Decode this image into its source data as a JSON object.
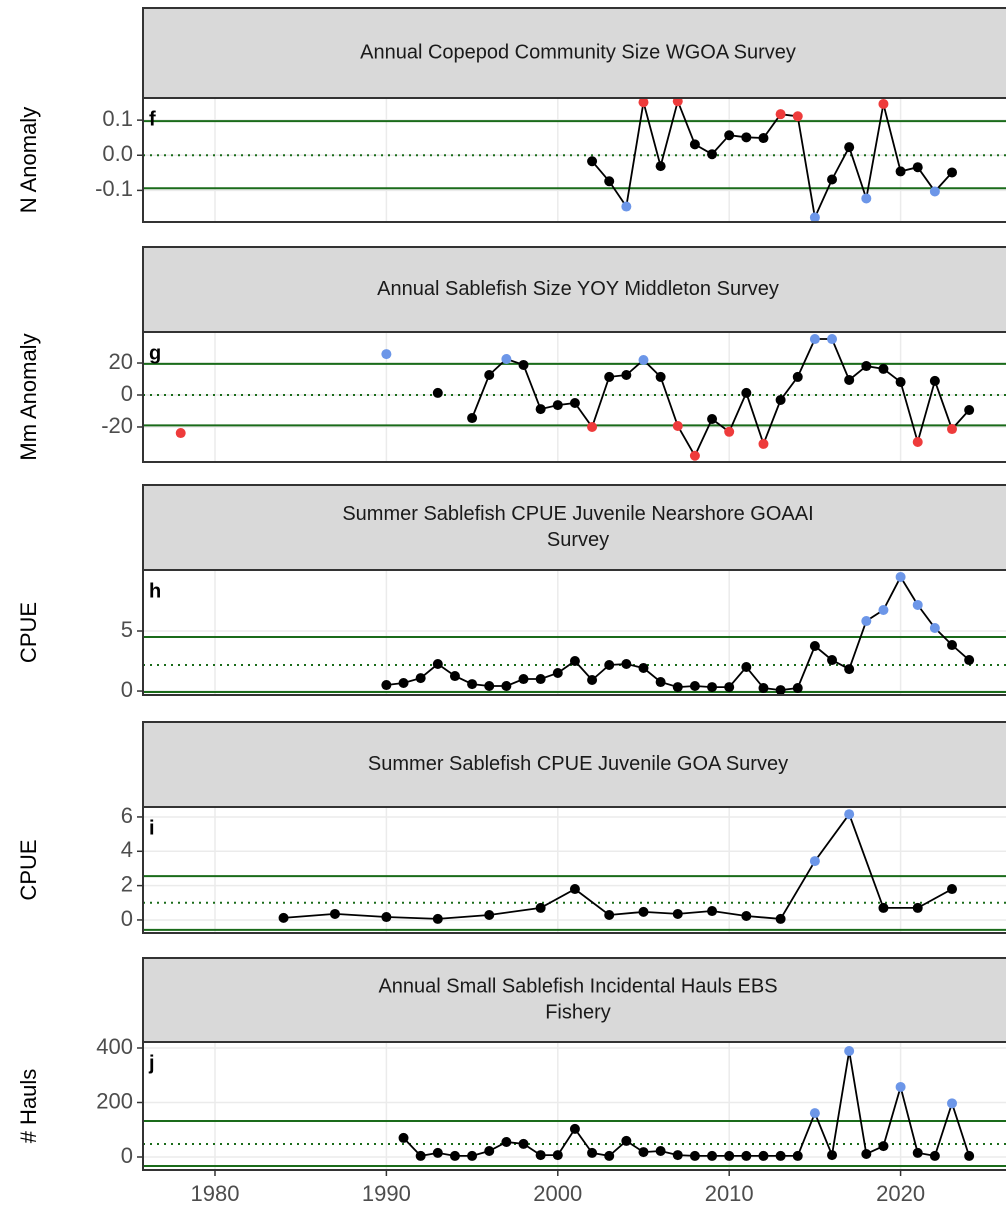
{
  "chart_data": [
    {
      "type": "line",
      "title": [
        "Annual Copepod Community Size WGOA Survey"
      ],
      "panel_label": "f",
      "ylabel": "N Anomaly",
      "xlim": [
        1975.8,
        2026.5
      ],
      "ylim": [
        -0.19,
        0.163
      ],
      "yticks": [
        -0.1,
        {
          "value": 0,
          "label": "0.0"
        },
        0.1
      ],
      "ref_lines": {
        "upper": 0.097,
        "mean": 0,
        "lower": -0.094
      },
      "line_color": "#000000",
      "ref_color": "#1a6b1a",
      "x": [
        2002,
        2003,
        2004,
        2005,
        2006,
        2007,
        2008,
        2009,
        2010,
        2011,
        2012,
        2013,
        2014,
        2015,
        2016,
        2017,
        2018,
        2019,
        2020,
        2021,
        2022,
        2023
      ],
      "values": [
        -0.017,
        -0.074,
        -0.146,
        0.151,
        -0.031,
        0.154,
        0.031,
        0.003,
        0.057,
        0.051,
        0.049,
        0.117,
        0.111,
        -0.177,
        -0.069,
        0.023,
        -0.123,
        0.146,
        -0.046,
        -0.034,
        -0.103,
        -0.049
      ],
      "point_colors": [
        "#000000",
        "#000000",
        "#6c96e8",
        "#ee3b3b",
        "#000000",
        "#ee3b3b",
        "#000000",
        "#000000",
        "#000000",
        "#000000",
        "#000000",
        "#ee3b3b",
        "#ee3b3b",
        "#6c96e8",
        "#000000",
        "#000000",
        "#6c96e8",
        "#ee3b3b",
        "#000000",
        "#000000",
        "#6c96e8",
        "#000000"
      ]
    },
    {
      "type": "line",
      "title": [
        "Annual Sablefish Size YOY Middleton Survey"
      ],
      "panel_label": "g",
      "ylabel": "Mm Anomaly",
      "xlim": [
        1975.8,
        2026.5
      ],
      "ylim": [
        -41.9,
        39.4
      ],
      "yticks": [
        -20,
        0,
        20
      ],
      "ref_lines": {
        "upper": 19.5,
        "mean": 0,
        "lower": -19
      },
      "line_color": "#000000",
      "ref_color": "#1a6b1a",
      "x": [
        1978,
        1979,
        1990,
        1991,
        1993,
        1994,
        1995,
        1996,
        1997,
        1998,
        1999,
        2000,
        2001,
        2002,
        2003,
        2004,
        2005,
        2006,
        2007,
        2008,
        2009,
        2010,
        2011,
        2012,
        2013,
        2014,
        2015,
        2016,
        2017,
        2018,
        2019,
        2020,
        2021,
        2022,
        2023,
        2024
      ],
      "values": [
        -23.8,
        null,
        25.6,
        null,
        1.3,
        null,
        -14.4,
        12.5,
        22.5,
        18.8,
        -8.8,
        -6.3,
        -5,
        -20,
        11.3,
        12.5,
        21.9,
        11.3,
        -19.4,
        -38,
        -15,
        -23,
        1.3,
        -30.6,
        -3.1,
        11.3,
        35,
        35,
        9.4,
        18.1,
        16.3,
        8.1,
        -29.4,
        8.8,
        -21.3,
        -9.4
      ],
      "point_colors": [
        "#ee3b3b",
        null,
        "#6c96e8",
        null,
        "#000000",
        null,
        "#000000",
        "#000000",
        "#6c96e8",
        "#000000",
        "#000000",
        "#000000",
        "#000000",
        "#ee3b3b",
        "#000000",
        "#000000",
        "#6c96e8",
        "#000000",
        "#ee3b3b",
        "#ee3b3b",
        "#000000",
        "#ee3b3b",
        "#000000",
        "#ee3b3b",
        "#000000",
        "#000000",
        "#6c96e8",
        "#6c96e8",
        "#000000",
        "#000000",
        "#000000",
        "#000000",
        "#ee3b3b",
        "#000000",
        "#ee3b3b",
        "#000000"
      ]
    },
    {
      "type": "line",
      "title": [
        "Summer Sablefish CPUE Juvenile Nearshore GOAAI",
        "Survey"
      ],
      "panel_label": "h",
      "ylabel": "CPUE",
      "xlim": [
        1975.8,
        2026.5
      ],
      "ylim": [
        -0.33,
        10.08
      ],
      "yticks": [
        0,
        5
      ],
      "ref_lines": {
        "upper": 4.5,
        "mean": 2.17,
        "lower": -0.08
      },
      "line_color": "#000000",
      "ref_color": "#1a6b1a",
      "x": [
        1990,
        1991,
        1992,
        1993,
        1994,
        1995,
        1996,
        1997,
        1998,
        1999,
        2000,
        2001,
        2002,
        2003,
        2004,
        2005,
        2006,
        2007,
        2008,
        2009,
        2010,
        2011,
        2012,
        2013,
        2014,
        2015,
        2016,
        2017,
        2018,
        2019,
        2020,
        2021,
        2022,
        2023,
        2024
      ],
      "values": [
        0.5,
        0.67,
        1.08,
        2.25,
        1.25,
        0.58,
        0.42,
        0.42,
        1.0,
        1.0,
        1.5,
        2.5,
        0.92,
        2.17,
        2.25,
        1.92,
        0.75,
        0.33,
        0.42,
        0.33,
        0.33,
        2.0,
        0.25,
        0.08,
        0.25,
        3.75,
        2.58,
        1.83,
        5.83,
        6.75,
        9.5,
        7.17,
        5.25,
        3.83,
        2.58
      ],
      "point_colors": [
        "#000000",
        "#000000",
        "#000000",
        "#000000",
        "#000000",
        "#000000",
        "#000000",
        "#000000",
        "#000000",
        "#000000",
        "#000000",
        "#000000",
        "#000000",
        "#000000",
        "#000000",
        "#000000",
        "#000000",
        "#000000",
        "#000000",
        "#000000",
        "#000000",
        "#000000",
        "#000000",
        "#000000",
        "#000000",
        "#000000",
        "#000000",
        "#000000",
        "#6c96e8",
        "#6c96e8",
        "#6c96e8",
        "#6c96e8",
        "#6c96e8",
        "#000000",
        "#000000"
      ]
    },
    {
      "type": "line",
      "title": [
        "Summer Sablefish CPUE Juvenile GOA Survey"
      ],
      "panel_label": "i",
      "ylabel": "CPUE",
      "xlim": [
        1975.8,
        2026.5
      ],
      "ylim": [
        -0.76,
        6.58
      ],
      "yticks": [
        0,
        2,
        4,
        6
      ],
      "ref_lines": {
        "upper": 2.55,
        "mean": 1.0,
        "lower": -0.58
      },
      "line_color": "#000000",
      "ref_color": "#1a6b1a",
      "x": [
        1984,
        1987,
        1990,
        1993,
        1996,
        1999,
        2001,
        2003,
        2005,
        2007,
        2009,
        2011,
        2013,
        2015,
        2017,
        2019,
        2021,
        2023
      ],
      "values": [
        0.12,
        0.35,
        0.17,
        0.06,
        0.29,
        0.7,
        1.8,
        0.29,
        0.47,
        0.35,
        0.52,
        0.23,
        0.06,
        3.43,
        6.16,
        0.7,
        0.7,
        1.8
      ],
      "point_colors": [
        "#000000",
        "#000000",
        "#000000",
        "#000000",
        "#000000",
        "#000000",
        "#000000",
        "#000000",
        "#000000",
        "#000000",
        "#000000",
        "#000000",
        "#000000",
        "#6c96e8",
        "#6c96e8",
        "#000000",
        "#000000",
        "#000000"
      ]
    },
    {
      "type": "line",
      "title": [
        "Annual Small Sablefish Incidental Hauls EBS",
        "Fishery"
      ],
      "panel_label": "j",
      "ylabel": "# Hauls",
      "xlim": [
        1975.8,
        2026.5
      ],
      "ylim": [
        -47.7,
        422
      ],
      "yticks": [
        0,
        200,
        400
      ],
      "xticks": [
        1980,
        1990,
        2000,
        2010,
        2020
      ],
      "ref_lines": {
        "upper": 132,
        "mean": 47.7,
        "lower": -33
      },
      "line_color": "#000000",
      "ref_color": "#1a6b1a",
      "x": [
        1991,
        1992,
        1993,
        1994,
        1995,
        1996,
        1997,
        1998,
        1999,
        2000,
        2001,
        2002,
        2003,
        2004,
        2005,
        2006,
        2007,
        2008,
        2009,
        2010,
        2011,
        2012,
        2013,
        2014,
        2015,
        2016,
        2017,
        2018,
        2019,
        2020,
        2021,
        2022,
        2023,
        2024
      ],
      "values": [
        70,
        4,
        15,
        4,
        4,
        22,
        55,
        48,
        7,
        7,
        103,
        15,
        4,
        59,
        18,
        22,
        7,
        4,
        4,
        4,
        4,
        4,
        4,
        4,
        161,
        7,
        389,
        11,
        40,
        257,
        15,
        4,
        197,
        4
      ],
      "point_colors": [
        "#000000",
        "#000000",
        "#000000",
        "#000000",
        "#000000",
        "#000000",
        "#000000",
        "#000000",
        "#000000",
        "#000000",
        "#000000",
        "#000000",
        "#000000",
        "#000000",
        "#000000",
        "#000000",
        "#000000",
        "#000000",
        "#000000",
        "#000000",
        "#000000",
        "#000000",
        "#000000",
        "#000000",
        "#6c96e8",
        "#000000",
        "#6c96e8",
        "#000000",
        "#000000",
        "#6c96e8",
        "#000000",
        "#000000",
        "#6c96e8",
        "#000000"
      ]
    }
  ]
}
